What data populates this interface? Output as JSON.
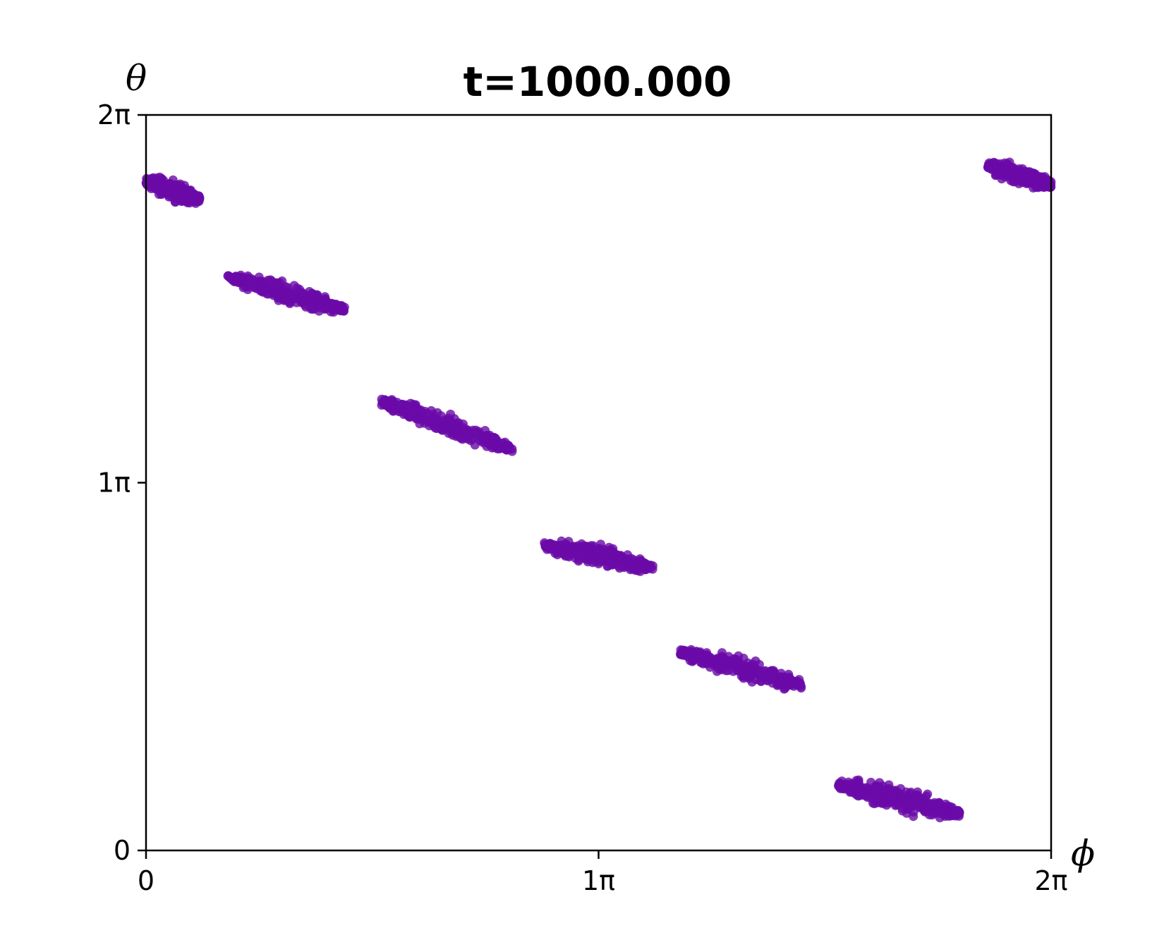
{
  "chart_data": {
    "type": "scatter",
    "title": "t=1000.000",
    "xlabel": "ϕ",
    "ylabel": "θ",
    "xlim": [
      0,
      2
    ],
    "ylim": [
      0,
      2
    ],
    "axis_unit": "π",
    "xticks": [
      {
        "value": 0,
        "label": "0"
      },
      {
        "value": 1,
        "label": "1π"
      },
      {
        "value": 2,
        "label": "2π"
      }
    ],
    "yticks": [
      {
        "value": 0,
        "label": "0"
      },
      {
        "value": 1,
        "label": "1π"
      },
      {
        "value": 2,
        "label": "2π"
      }
    ],
    "grid": false,
    "marker_color": "#6a0aa8",
    "clusters": [
      {
        "x_start": 0.0,
        "x_end": 0.12,
        "y_start": 1.82,
        "y_end": 1.77,
        "half_height": 0.035
      },
      {
        "x_start": 0.18,
        "x_end": 0.44,
        "y_start": 1.56,
        "y_end": 1.47,
        "half_height": 0.035
      },
      {
        "x_start": 0.52,
        "x_end": 0.81,
        "y_start": 1.22,
        "y_end": 1.09,
        "half_height": 0.04
      },
      {
        "x_start": 0.88,
        "x_end": 1.12,
        "y_start": 0.83,
        "y_end": 0.77,
        "half_height": 0.04
      },
      {
        "x_start": 1.18,
        "x_end": 1.45,
        "y_start": 0.54,
        "y_end": 0.45,
        "half_height": 0.04
      },
      {
        "x_start": 1.53,
        "x_end": 1.8,
        "y_start": 0.18,
        "y_end": 0.1,
        "half_height": 0.045
      },
      {
        "x_start": 1.86,
        "x_end": 2.0,
        "y_start": 1.86,
        "y_end": 1.81,
        "half_height": 0.035
      }
    ]
  }
}
